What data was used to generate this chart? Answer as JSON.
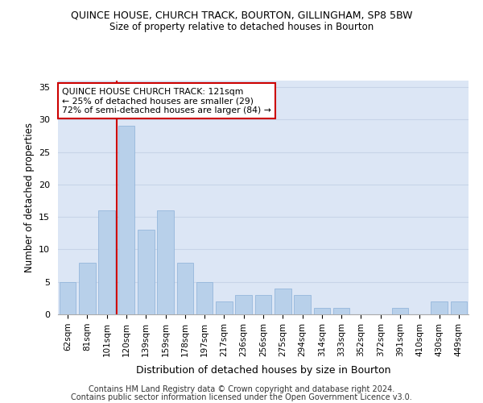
{
  "title": "QUINCE HOUSE, CHURCH TRACK, BOURTON, GILLINGHAM, SP8 5BW",
  "subtitle": "Size of property relative to detached houses in Bourton",
  "xlabel": "Distribution of detached houses by size in Bourton",
  "ylabel": "Number of detached properties",
  "footer_line1": "Contains HM Land Registry data © Crown copyright and database right 2024.",
  "footer_line2": "Contains public sector information licensed under the Open Government Licence v3.0.",
  "categories": [
    "62sqm",
    "81sqm",
    "101sqm",
    "120sqm",
    "139sqm",
    "159sqm",
    "178sqm",
    "197sqm",
    "217sqm",
    "236sqm",
    "256sqm",
    "275sqm",
    "294sqm",
    "314sqm",
    "333sqm",
    "352sqm",
    "372sqm",
    "391sqm",
    "410sqm",
    "430sqm",
    "449sqm"
  ],
  "values": [
    5,
    8,
    16,
    29,
    13,
    16,
    8,
    5,
    2,
    3,
    3,
    4,
    3,
    1,
    1,
    0,
    0,
    1,
    0,
    2,
    2
  ],
  "bar_color": "#b8d0ea",
  "bar_edge_color": "#8ab0d8",
  "grid_color": "#c8d4e8",
  "background_color": "#dce6f5",
  "annotation_line1": "QUINCE HOUSE CHURCH TRACK: 121sqm",
  "annotation_line2": "← 25% of detached houses are smaller (29)",
  "annotation_line3": "72% of semi-detached houses are larger (84) →",
  "annotation_box_color": "#ffffff",
  "annotation_box_edge_color": "#cc0000",
  "vline_color": "#cc0000",
  "vline_x": 2.5,
  "ylim": [
    0,
    36
  ],
  "yticks": [
    0,
    5,
    10,
    15,
    20,
    25,
    30,
    35
  ]
}
